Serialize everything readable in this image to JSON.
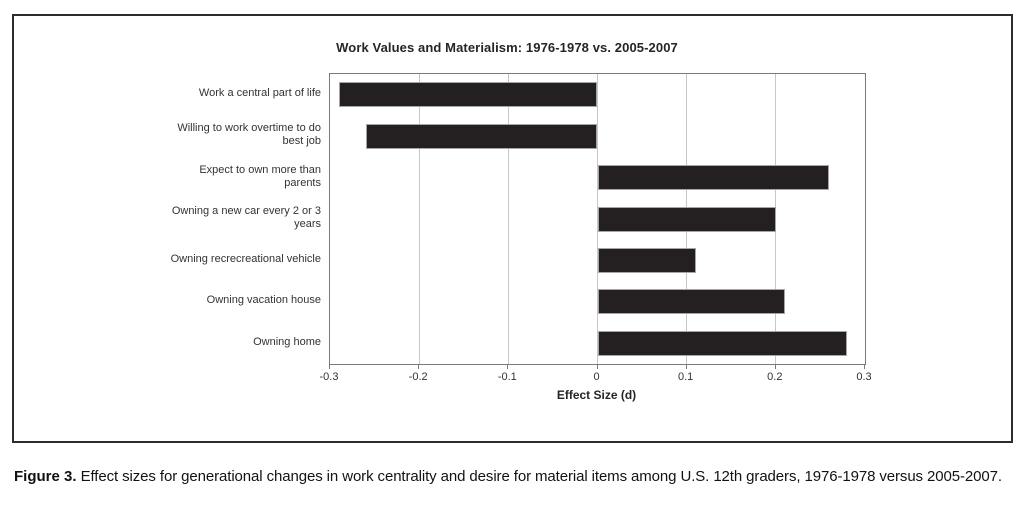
{
  "figure": {
    "caption_label": "Figure 3.",
    "caption_text": "Effect sizes for generational changes in work centrality and desire for material items among U.S. 12th graders, 1976-1978 versus 2005-2007."
  },
  "chart_data": {
    "type": "bar",
    "orientation": "horizontal",
    "title": "Work Values and Materialism: 1976-1978 vs. 2005-2007",
    "xlabel": "Effect Size (d)",
    "ylabel": "",
    "xlim": [
      -0.3,
      0.3
    ],
    "xticks": [
      -0.3,
      -0.2,
      -0.1,
      0,
      0.1,
      0.2,
      0.3
    ],
    "xtick_labels": [
      "-0.3",
      "-0.2",
      "-0.1",
      "0",
      "0.1",
      "0.2",
      "0.3"
    ],
    "grid": true,
    "legend": false,
    "categories": [
      "Work a central part of life",
      "Willing to work overtime to do best job",
      "Expect to own more than parents",
      "Owning a new car every 2 or 3 years",
      "Owning recrecreational vehicle",
      "Owning vacation house",
      "Owning home"
    ],
    "label_lines": [
      [
        "Work a central part of life"
      ],
      [
        "Willing to work overtime to do",
        "best job"
      ],
      [
        "Expect to own more than",
        "parents"
      ],
      [
        "Owning a new car every 2 or 3",
        "years"
      ],
      [
        "Owning recrecreational vehicle"
      ],
      [
        "Owning vacation house"
      ],
      [
        "Owning home"
      ]
    ],
    "values": [
      -0.29,
      -0.26,
      0.26,
      0.2,
      0.11,
      0.21,
      0.28
    ],
    "bar_color": "#241f20",
    "bar_border_color": "#a6a6a6",
    "gridline_color": "#c6c6c6",
    "axis_color": "#7a7a7a"
  }
}
